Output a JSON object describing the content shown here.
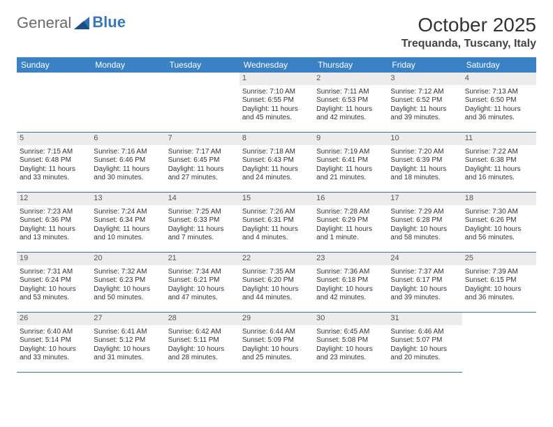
{
  "logo": {
    "text1": "General",
    "text2": "Blue"
  },
  "title": "October 2025",
  "location": "Trequanda, Tuscany, Italy",
  "colors": {
    "header_bg": "#3a82c4",
    "header_text": "#ffffff",
    "daynum_bg": "#ececec",
    "border": "#3a6fa0",
    "logo_blue": "#3a78b5",
    "logo_gray": "#6b6b6b"
  },
  "weekdays": [
    "Sunday",
    "Monday",
    "Tuesday",
    "Wednesday",
    "Thursday",
    "Friday",
    "Saturday"
  ],
  "leading_blanks": 3,
  "days": [
    {
      "n": "1",
      "sr": "Sunrise: 7:10 AM",
      "ss": "Sunset: 6:55 PM",
      "dl1": "Daylight: 11 hours",
      "dl2": "and 45 minutes."
    },
    {
      "n": "2",
      "sr": "Sunrise: 7:11 AM",
      "ss": "Sunset: 6:53 PM",
      "dl1": "Daylight: 11 hours",
      "dl2": "and 42 minutes."
    },
    {
      "n": "3",
      "sr": "Sunrise: 7:12 AM",
      "ss": "Sunset: 6:52 PM",
      "dl1": "Daylight: 11 hours",
      "dl2": "and 39 minutes."
    },
    {
      "n": "4",
      "sr": "Sunrise: 7:13 AM",
      "ss": "Sunset: 6:50 PM",
      "dl1": "Daylight: 11 hours",
      "dl2": "and 36 minutes."
    },
    {
      "n": "5",
      "sr": "Sunrise: 7:15 AM",
      "ss": "Sunset: 6:48 PM",
      "dl1": "Daylight: 11 hours",
      "dl2": "and 33 minutes."
    },
    {
      "n": "6",
      "sr": "Sunrise: 7:16 AM",
      "ss": "Sunset: 6:46 PM",
      "dl1": "Daylight: 11 hours",
      "dl2": "and 30 minutes."
    },
    {
      "n": "7",
      "sr": "Sunrise: 7:17 AM",
      "ss": "Sunset: 6:45 PM",
      "dl1": "Daylight: 11 hours",
      "dl2": "and 27 minutes."
    },
    {
      "n": "8",
      "sr": "Sunrise: 7:18 AM",
      "ss": "Sunset: 6:43 PM",
      "dl1": "Daylight: 11 hours",
      "dl2": "and 24 minutes."
    },
    {
      "n": "9",
      "sr": "Sunrise: 7:19 AM",
      "ss": "Sunset: 6:41 PM",
      "dl1": "Daylight: 11 hours",
      "dl2": "and 21 minutes."
    },
    {
      "n": "10",
      "sr": "Sunrise: 7:20 AM",
      "ss": "Sunset: 6:39 PM",
      "dl1": "Daylight: 11 hours",
      "dl2": "and 18 minutes."
    },
    {
      "n": "11",
      "sr": "Sunrise: 7:22 AM",
      "ss": "Sunset: 6:38 PM",
      "dl1": "Daylight: 11 hours",
      "dl2": "and 16 minutes."
    },
    {
      "n": "12",
      "sr": "Sunrise: 7:23 AM",
      "ss": "Sunset: 6:36 PM",
      "dl1": "Daylight: 11 hours",
      "dl2": "and 13 minutes."
    },
    {
      "n": "13",
      "sr": "Sunrise: 7:24 AM",
      "ss": "Sunset: 6:34 PM",
      "dl1": "Daylight: 11 hours",
      "dl2": "and 10 minutes."
    },
    {
      "n": "14",
      "sr": "Sunrise: 7:25 AM",
      "ss": "Sunset: 6:33 PM",
      "dl1": "Daylight: 11 hours",
      "dl2": "and 7 minutes."
    },
    {
      "n": "15",
      "sr": "Sunrise: 7:26 AM",
      "ss": "Sunset: 6:31 PM",
      "dl1": "Daylight: 11 hours",
      "dl2": "and 4 minutes."
    },
    {
      "n": "16",
      "sr": "Sunrise: 7:28 AM",
      "ss": "Sunset: 6:29 PM",
      "dl1": "Daylight: 11 hours",
      "dl2": "and 1 minute."
    },
    {
      "n": "17",
      "sr": "Sunrise: 7:29 AM",
      "ss": "Sunset: 6:28 PM",
      "dl1": "Daylight: 10 hours",
      "dl2": "and 58 minutes."
    },
    {
      "n": "18",
      "sr": "Sunrise: 7:30 AM",
      "ss": "Sunset: 6:26 PM",
      "dl1": "Daylight: 10 hours",
      "dl2": "and 56 minutes."
    },
    {
      "n": "19",
      "sr": "Sunrise: 7:31 AM",
      "ss": "Sunset: 6:24 PM",
      "dl1": "Daylight: 10 hours",
      "dl2": "and 53 minutes."
    },
    {
      "n": "20",
      "sr": "Sunrise: 7:32 AM",
      "ss": "Sunset: 6:23 PM",
      "dl1": "Daylight: 10 hours",
      "dl2": "and 50 minutes."
    },
    {
      "n": "21",
      "sr": "Sunrise: 7:34 AM",
      "ss": "Sunset: 6:21 PM",
      "dl1": "Daylight: 10 hours",
      "dl2": "and 47 minutes."
    },
    {
      "n": "22",
      "sr": "Sunrise: 7:35 AM",
      "ss": "Sunset: 6:20 PM",
      "dl1": "Daylight: 10 hours",
      "dl2": "and 44 minutes."
    },
    {
      "n": "23",
      "sr": "Sunrise: 7:36 AM",
      "ss": "Sunset: 6:18 PM",
      "dl1": "Daylight: 10 hours",
      "dl2": "and 42 minutes."
    },
    {
      "n": "24",
      "sr": "Sunrise: 7:37 AM",
      "ss": "Sunset: 6:17 PM",
      "dl1": "Daylight: 10 hours",
      "dl2": "and 39 minutes."
    },
    {
      "n": "25",
      "sr": "Sunrise: 7:39 AM",
      "ss": "Sunset: 6:15 PM",
      "dl1": "Daylight: 10 hours",
      "dl2": "and 36 minutes."
    },
    {
      "n": "26",
      "sr": "Sunrise: 6:40 AM",
      "ss": "Sunset: 5:14 PM",
      "dl1": "Daylight: 10 hours",
      "dl2": "and 33 minutes."
    },
    {
      "n": "27",
      "sr": "Sunrise: 6:41 AM",
      "ss": "Sunset: 5:12 PM",
      "dl1": "Daylight: 10 hours",
      "dl2": "and 31 minutes."
    },
    {
      "n": "28",
      "sr": "Sunrise: 6:42 AM",
      "ss": "Sunset: 5:11 PM",
      "dl1": "Daylight: 10 hours",
      "dl2": "and 28 minutes."
    },
    {
      "n": "29",
      "sr": "Sunrise: 6:44 AM",
      "ss": "Sunset: 5:09 PM",
      "dl1": "Daylight: 10 hours",
      "dl2": "and 25 minutes."
    },
    {
      "n": "30",
      "sr": "Sunrise: 6:45 AM",
      "ss": "Sunset: 5:08 PM",
      "dl1": "Daylight: 10 hours",
      "dl2": "and 23 minutes."
    },
    {
      "n": "31",
      "sr": "Sunrise: 6:46 AM",
      "ss": "Sunset: 5:07 PM",
      "dl1": "Daylight: 10 hours",
      "dl2": "and 20 minutes."
    }
  ]
}
